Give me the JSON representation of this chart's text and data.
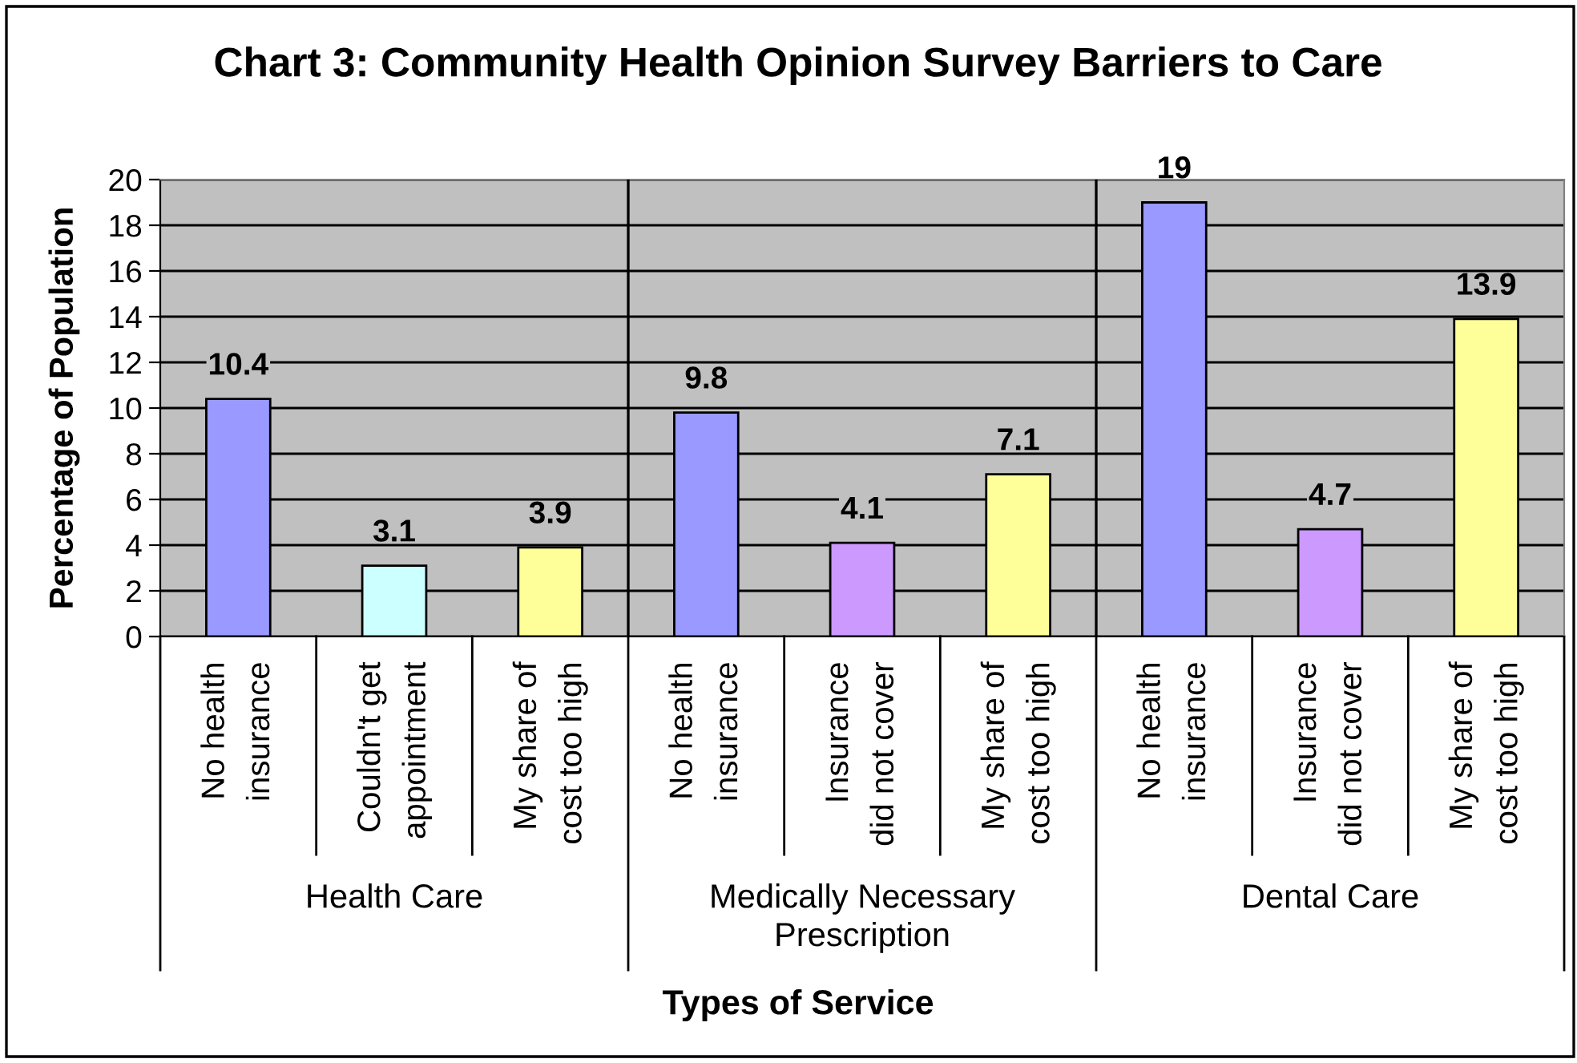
{
  "chart_data": {
    "type": "bar",
    "title": "Chart 3: Community Health Opinion Survey Barriers to Care",
    "xlabel": "Types of Service",
    "ylabel": "Percentage of Population",
    "categories": [
      "No health\ninsurance",
      "Couldn't get\nappointment",
      "My share of\ncost too high",
      "No health\ninsurance",
      "Insurance\ndid not cover",
      "My share of\ncost too high",
      "No health\ninsurance",
      "Insurance\ndid not cover",
      "My share of\ncost too high"
    ],
    "values": [
      10.4,
      3.1,
      3.9,
      9.8,
      4.1,
      7.1,
      19,
      4.7,
      13.9
    ],
    "colors": [
      "#9999ff",
      "#ccffff",
      "#ffff99",
      "#9999ff",
      "#cc99ff",
      "#ffff99",
      "#9999ff",
      "#cc99ff",
      "#ffff99"
    ],
    "ylim": [
      0,
      20
    ],
    "yticks": [
      0,
      2,
      4,
      6,
      8,
      10,
      12,
      14,
      16,
      18,
      20
    ],
    "grid": "y",
    "data_labels": true,
    "annotations": [
      "Health Care",
      "Medically Necessary\nPrescription",
      "Dental Care"
    ]
  }
}
